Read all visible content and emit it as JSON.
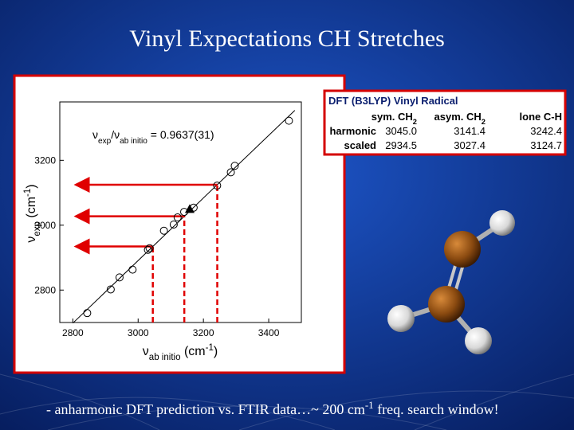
{
  "title": "Vinyl Expectations CH Stretches",
  "chart_data": {
    "type": "scatter",
    "xlim": [
      2760,
      3500
    ],
    "ylim": [
      2700,
      3380
    ],
    "xticks": [
      2800,
      3000,
      3200,
      3400
    ],
    "yticks": [
      2800,
      3000,
      3200
    ],
    "x_label": [
      {
        "t": "ν"
      },
      {
        "t": "ab initio",
        "s": "sub"
      },
      {
        "t": " (cm"
      },
      {
        "t": "-1",
        "s": "sup"
      },
      {
        "t": ")"
      }
    ],
    "y_label": [
      {
        "t": "ν"
      },
      {
        "t": "exp",
        "s": "sub"
      },
      {
        "t": " (cm"
      },
      {
        "t": "-1",
        "s": "sup"
      },
      {
        "t": ")"
      }
    ],
    "annotation": [
      {
        "t": "ν"
      },
      {
        "t": "exp",
        "s": "sub"
      },
      {
        "t": "/ν"
      },
      {
        "t": "ab initio",
        "s": "sub"
      },
      {
        "t": " = 0.9637(31)"
      }
    ],
    "series": [
      {
        "marker": "open-circle",
        "color": "#000000",
        "x": [
          2844,
          2916,
          2943,
          2983,
          3030,
          3035,
          3079,
          3109,
          3121,
          3141,
          3170,
          3242,
          3284,
          3296,
          3462
        ],
        "values": [
          2729,
          2802,
          2839,
          2863,
          2924,
          2929,
          2983,
          3002,
          3024,
          3041,
          3054,
          3122,
          3163,
          3183,
          3322
        ]
      },
      {
        "marker": "filled-triangle",
        "color": "#000000",
        "x": [
          3158
        ],
        "values": [
          3050
        ]
      }
    ],
    "fit_line": {
      "color": "#000000",
      "x": [
        2800,
        3480
      ],
      "values": [
        2698,
        3354
      ]
    },
    "guide_color": "#e00000"
  },
  "table": {
    "title": "DFT (B3LYP) Vinyl Radical",
    "columns": [
      [
        {
          "t": "sym. CH"
        },
        {
          "t": "2",
          "s": "sub"
        }
      ],
      [
        {
          "t": "asym. CH"
        },
        {
          "t": "2",
          "s": "sub"
        }
      ],
      [
        {
          "t": "lone C-H"
        }
      ]
    ],
    "rows": [
      {
        "label": "harmonic",
        "values": [
          "3045.0",
          "3141.4",
          "3242.4"
        ]
      },
      {
        "label": "scaled",
        "values": [
          "2934.5",
          "3027.4",
          "3124.7"
        ]
      }
    ]
  },
  "footer": [
    {
      "t": "- anharmonic DFT prediction vs. FTIR data…~ 200 cm"
    },
    {
      "t": "-1",
      "s": "sup"
    },
    {
      "t": " freq. search window!"
    }
  ]
}
